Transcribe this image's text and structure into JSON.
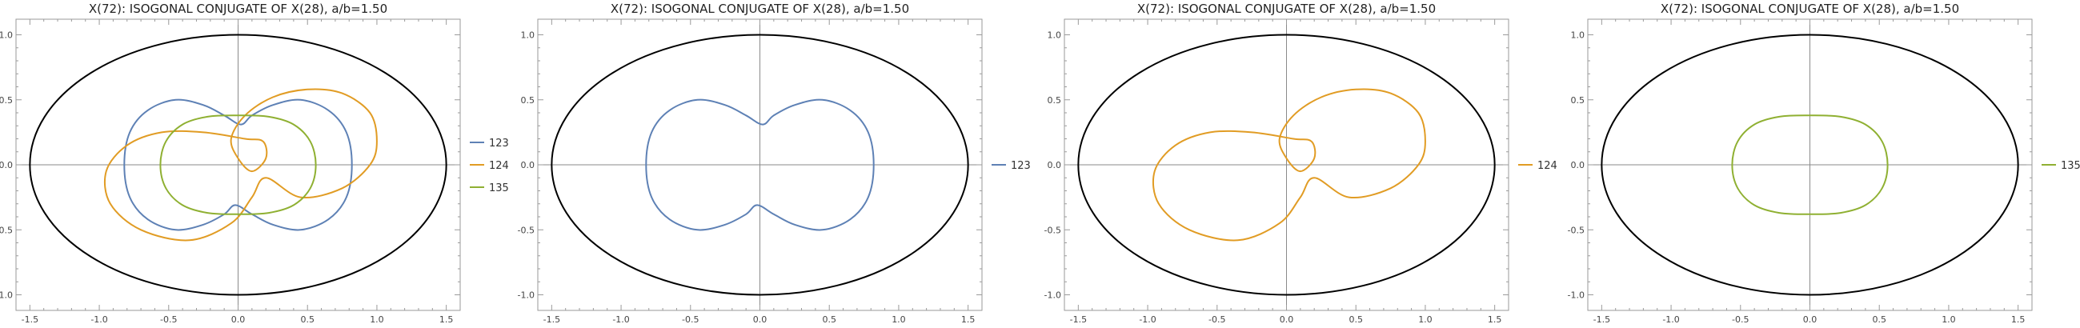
{
  "figure": {
    "panels": [
      {
        "title": "X(72): ISOGONAL CONJUGATE OF X(28), a/b=1.50",
        "legend": [
          "123",
          "124",
          "135"
        ]
      },
      {
        "title": "X(72): ISOGONAL CONJUGATE OF X(28), a/b=1.50",
        "legend": [
          "123"
        ]
      },
      {
        "title": "X(72): ISOGONAL CONJUGATE OF X(28), a/b=1.50",
        "legend": [
          "124"
        ]
      },
      {
        "title": "X(72): ISOGONAL CONJUGATE OF X(28), a/b=1.50",
        "legend": [
          "135"
        ]
      }
    ]
  },
  "chart_data": [
    {
      "type": "line",
      "title": "X(72): ISOGONAL CONJUGATE OF X(28), a/b=1.50",
      "xlabel": "",
      "ylabel": "",
      "xlim": [
        -1.6,
        1.6
      ],
      "ylim": [
        -1.12,
        1.12
      ],
      "xticks": [
        -1.5,
        -1.0,
        -0.5,
        0.0,
        0.5,
        1.0,
        1.5
      ],
      "yticks": [
        -1.0,
        -0.5,
        0.0,
        0.5,
        1.0
      ],
      "xtick_labels": [
        "-1.5",
        "-1.0",
        "-0.5",
        "0.0",
        "0.5",
        "1.0",
        "1.5"
      ],
      "ytick_labels": [
        "-1.0",
        "-0.5",
        "0.0",
        "0.5",
        "1.0"
      ],
      "grid": false,
      "axes_through_origin": true,
      "legend_position": "right",
      "ellipse": {
        "a": 1.5,
        "b": 1.0,
        "color": "#000000"
      },
      "series": [
        {
          "name": "123",
          "color": "#5e81b5",
          "points": [
            [
              0.82,
              0
            ],
            [
              0.78,
              0.25
            ],
            [
              0.65,
              0.42
            ],
            [
              0.45,
              0.5
            ],
            [
              0.25,
              0.46
            ],
            [
              0.1,
              0.38
            ],
            [
              0.02,
              0.31
            ],
            [
              -0.1,
              0.38
            ],
            [
              -0.25,
              0.46
            ],
            [
              -0.45,
              0.5
            ],
            [
              -0.65,
              0.42
            ],
            [
              -0.78,
              0.25
            ],
            [
              -0.82,
              0
            ],
            [
              -0.78,
              -0.25
            ],
            [
              -0.65,
              -0.42
            ],
            [
              -0.45,
              -0.5
            ],
            [
              -0.25,
              -0.46
            ],
            [
              -0.1,
              -0.38
            ],
            [
              -0.02,
              -0.31
            ],
            [
              0.1,
              -0.38
            ],
            [
              0.25,
              -0.46
            ],
            [
              0.45,
              -0.5
            ],
            [
              0.65,
              -0.42
            ],
            [
              0.78,
              -0.25
            ],
            [
              0.82,
              0
            ]
          ]
        },
        {
          "name": "124",
          "color": "#e19c24",
          "points": [
            [
              1.0,
              0.18
            ],
            [
              0.95,
              0.4
            ],
            [
              0.75,
              0.55
            ],
            [
              0.5,
              0.58
            ],
            [
              0.25,
              0.52
            ],
            [
              0.05,
              0.38
            ],
            [
              -0.05,
              0.2
            ],
            [
              0.0,
              0.05
            ],
            [
              0.1,
              -0.05
            ],
            [
              0.2,
              0.05
            ],
            [
              0.18,
              0.18
            ],
            [
              0.05,
              0.2
            ],
            [
              -0.25,
              0.25
            ],
            [
              -0.55,
              0.25
            ],
            [
              -0.8,
              0.15
            ],
            [
              -0.95,
              -0.05
            ],
            [
              -0.92,
              -0.3
            ],
            [
              -0.7,
              -0.5
            ],
            [
              -0.35,
              -0.58
            ],
            [
              -0.05,
              -0.45
            ],
            [
              0.1,
              -0.25
            ],
            [
              0.2,
              -0.1
            ],
            [
              0.45,
              -0.25
            ],
            [
              0.75,
              -0.18
            ],
            [
              0.95,
              0.0
            ],
            [
              1.0,
              0.18
            ]
          ]
        },
        {
          "name": "135",
          "color": "#8fb032",
          "points": [
            [
              0.56,
              0
            ],
            [
              0.52,
              0.18
            ],
            [
              0.4,
              0.31
            ],
            [
              0.22,
              0.37
            ],
            [
              0.0,
              0.38
            ],
            [
              -0.22,
              0.37
            ],
            [
              -0.4,
              0.31
            ],
            [
              -0.52,
              0.18
            ],
            [
              -0.56,
              0
            ],
            [
              -0.52,
              -0.18
            ],
            [
              -0.4,
              -0.31
            ],
            [
              -0.22,
              -0.37
            ],
            [
              0.0,
              -0.38
            ],
            [
              0.22,
              -0.37
            ],
            [
              0.4,
              -0.31
            ],
            [
              0.52,
              -0.18
            ],
            [
              0.56,
              0
            ]
          ]
        }
      ]
    },
    {
      "type": "line",
      "title": "X(72): ISOGONAL CONJUGATE OF X(28), a/b=1.50",
      "xlabel": "",
      "ylabel": "",
      "xlim": [
        -1.6,
        1.6
      ],
      "ylim": [
        -1.12,
        1.12
      ],
      "xticks": [
        -1.5,
        -1.0,
        -0.5,
        0.0,
        0.5,
        1.0,
        1.5
      ],
      "yticks": [
        -1.0,
        -0.5,
        0.0,
        0.5,
        1.0
      ],
      "xtick_labels": [
        "-1.5",
        "-1.0",
        "-0.5",
        "0.0",
        "0.5",
        "1.0",
        "1.5"
      ],
      "ytick_labels": [
        "-1.0",
        "-0.5",
        "0.0",
        "0.5",
        "1.0"
      ],
      "grid": false,
      "axes_through_origin": true,
      "legend_position": "right",
      "ellipse": {
        "a": 1.5,
        "b": 1.0,
        "color": "#000000"
      },
      "series": [
        {
          "name": "123",
          "color": "#5e81b5",
          "points": [
            [
              0.82,
              0
            ],
            [
              0.78,
              0.25
            ],
            [
              0.65,
              0.42
            ],
            [
              0.45,
              0.5
            ],
            [
              0.25,
              0.46
            ],
            [
              0.1,
              0.38
            ],
            [
              0.02,
              0.31
            ],
            [
              -0.1,
              0.38
            ],
            [
              -0.25,
              0.46
            ],
            [
              -0.45,
              0.5
            ],
            [
              -0.65,
              0.42
            ],
            [
              -0.78,
              0.25
            ],
            [
              -0.82,
              0
            ],
            [
              -0.78,
              -0.25
            ],
            [
              -0.65,
              -0.42
            ],
            [
              -0.45,
              -0.5
            ],
            [
              -0.25,
              -0.46
            ],
            [
              -0.1,
              -0.38
            ],
            [
              -0.02,
              -0.31
            ],
            [
              0.1,
              -0.38
            ],
            [
              0.25,
              -0.46
            ],
            [
              0.45,
              -0.5
            ],
            [
              0.65,
              -0.42
            ],
            [
              0.78,
              -0.25
            ],
            [
              0.82,
              0
            ]
          ]
        }
      ]
    },
    {
      "type": "line",
      "title": "X(72): ISOGONAL CONJUGATE OF X(28), a/b=1.50",
      "xlabel": "",
      "ylabel": "",
      "xlim": [
        -1.6,
        1.6
      ],
      "ylim": [
        -1.12,
        1.12
      ],
      "xticks": [
        -1.5,
        -1.0,
        -0.5,
        0.0,
        0.5,
        1.0,
        1.5
      ],
      "yticks": [
        -1.0,
        -0.5,
        0.0,
        0.5,
        1.0
      ],
      "xtick_labels": [
        "-1.5",
        "-1.0",
        "-0.5",
        "0.0",
        "0.5",
        "1.0",
        "1.5"
      ],
      "ytick_labels": [
        "-1.0",
        "-0.5",
        "0.0",
        "0.5",
        "1.0"
      ],
      "grid": false,
      "axes_through_origin": true,
      "legend_position": "right",
      "ellipse": {
        "a": 1.5,
        "b": 1.0,
        "color": "#000000"
      },
      "series": [
        {
          "name": "124",
          "color": "#e19c24",
          "points": [
            [
              1.0,
              0.18
            ],
            [
              0.95,
              0.4
            ],
            [
              0.75,
              0.55
            ],
            [
              0.5,
              0.58
            ],
            [
              0.25,
              0.52
            ],
            [
              0.05,
              0.38
            ],
            [
              -0.05,
              0.2
            ],
            [
              0.0,
              0.05
            ],
            [
              0.1,
              -0.05
            ],
            [
              0.2,
              0.05
            ],
            [
              0.18,
              0.18
            ],
            [
              0.05,
              0.2
            ],
            [
              -0.25,
              0.25
            ],
            [
              -0.55,
              0.25
            ],
            [
              -0.8,
              0.15
            ],
            [
              -0.95,
              -0.05
            ],
            [
              -0.92,
              -0.3
            ],
            [
              -0.7,
              -0.5
            ],
            [
              -0.35,
              -0.58
            ],
            [
              -0.05,
              -0.45
            ],
            [
              0.1,
              -0.25
            ],
            [
              0.2,
              -0.1
            ],
            [
              0.45,
              -0.25
            ],
            [
              0.75,
              -0.18
            ],
            [
              0.95,
              0.0
            ],
            [
              1.0,
              0.18
            ]
          ]
        }
      ]
    },
    {
      "type": "line",
      "title": "X(72): ISOGONAL CONJUGATE OF X(28), a/b=1.50",
      "xlabel": "",
      "ylabel": "",
      "xlim": [
        -1.6,
        1.6
      ],
      "ylim": [
        -1.12,
        1.12
      ],
      "xticks": [
        -1.5,
        -1.0,
        -0.5,
        0.0,
        0.5,
        1.0,
        1.5
      ],
      "yticks": [
        -1.0,
        -0.5,
        0.0,
        0.5,
        1.0
      ],
      "xtick_labels": [
        "-1.5",
        "-1.0",
        "-0.5",
        "0.0",
        "0.5",
        "1.0",
        "1.5"
      ],
      "ytick_labels": [
        "-1.0",
        "-0.5",
        "0.0",
        "0.5",
        "1.0"
      ],
      "grid": false,
      "axes_through_origin": true,
      "legend_position": "right",
      "ellipse": {
        "a": 1.5,
        "b": 1.0,
        "color": "#000000"
      },
      "series": [
        {
          "name": "135",
          "color": "#8fb032",
          "points": [
            [
              0.56,
              0
            ],
            [
              0.52,
              0.18
            ],
            [
              0.4,
              0.31
            ],
            [
              0.22,
              0.37
            ],
            [
              0.0,
              0.38
            ],
            [
              -0.22,
              0.37
            ],
            [
              -0.4,
              0.31
            ],
            [
              -0.52,
              0.18
            ],
            [
              -0.56,
              0
            ],
            [
              -0.52,
              -0.18
            ],
            [
              -0.4,
              -0.31
            ],
            [
              -0.22,
              -0.37
            ],
            [
              0.0,
              -0.38
            ],
            [
              0.22,
              -0.37
            ],
            [
              0.4,
              -0.31
            ],
            [
              0.52,
              -0.18
            ],
            [
              0.56,
              0
            ]
          ]
        }
      ]
    }
  ]
}
